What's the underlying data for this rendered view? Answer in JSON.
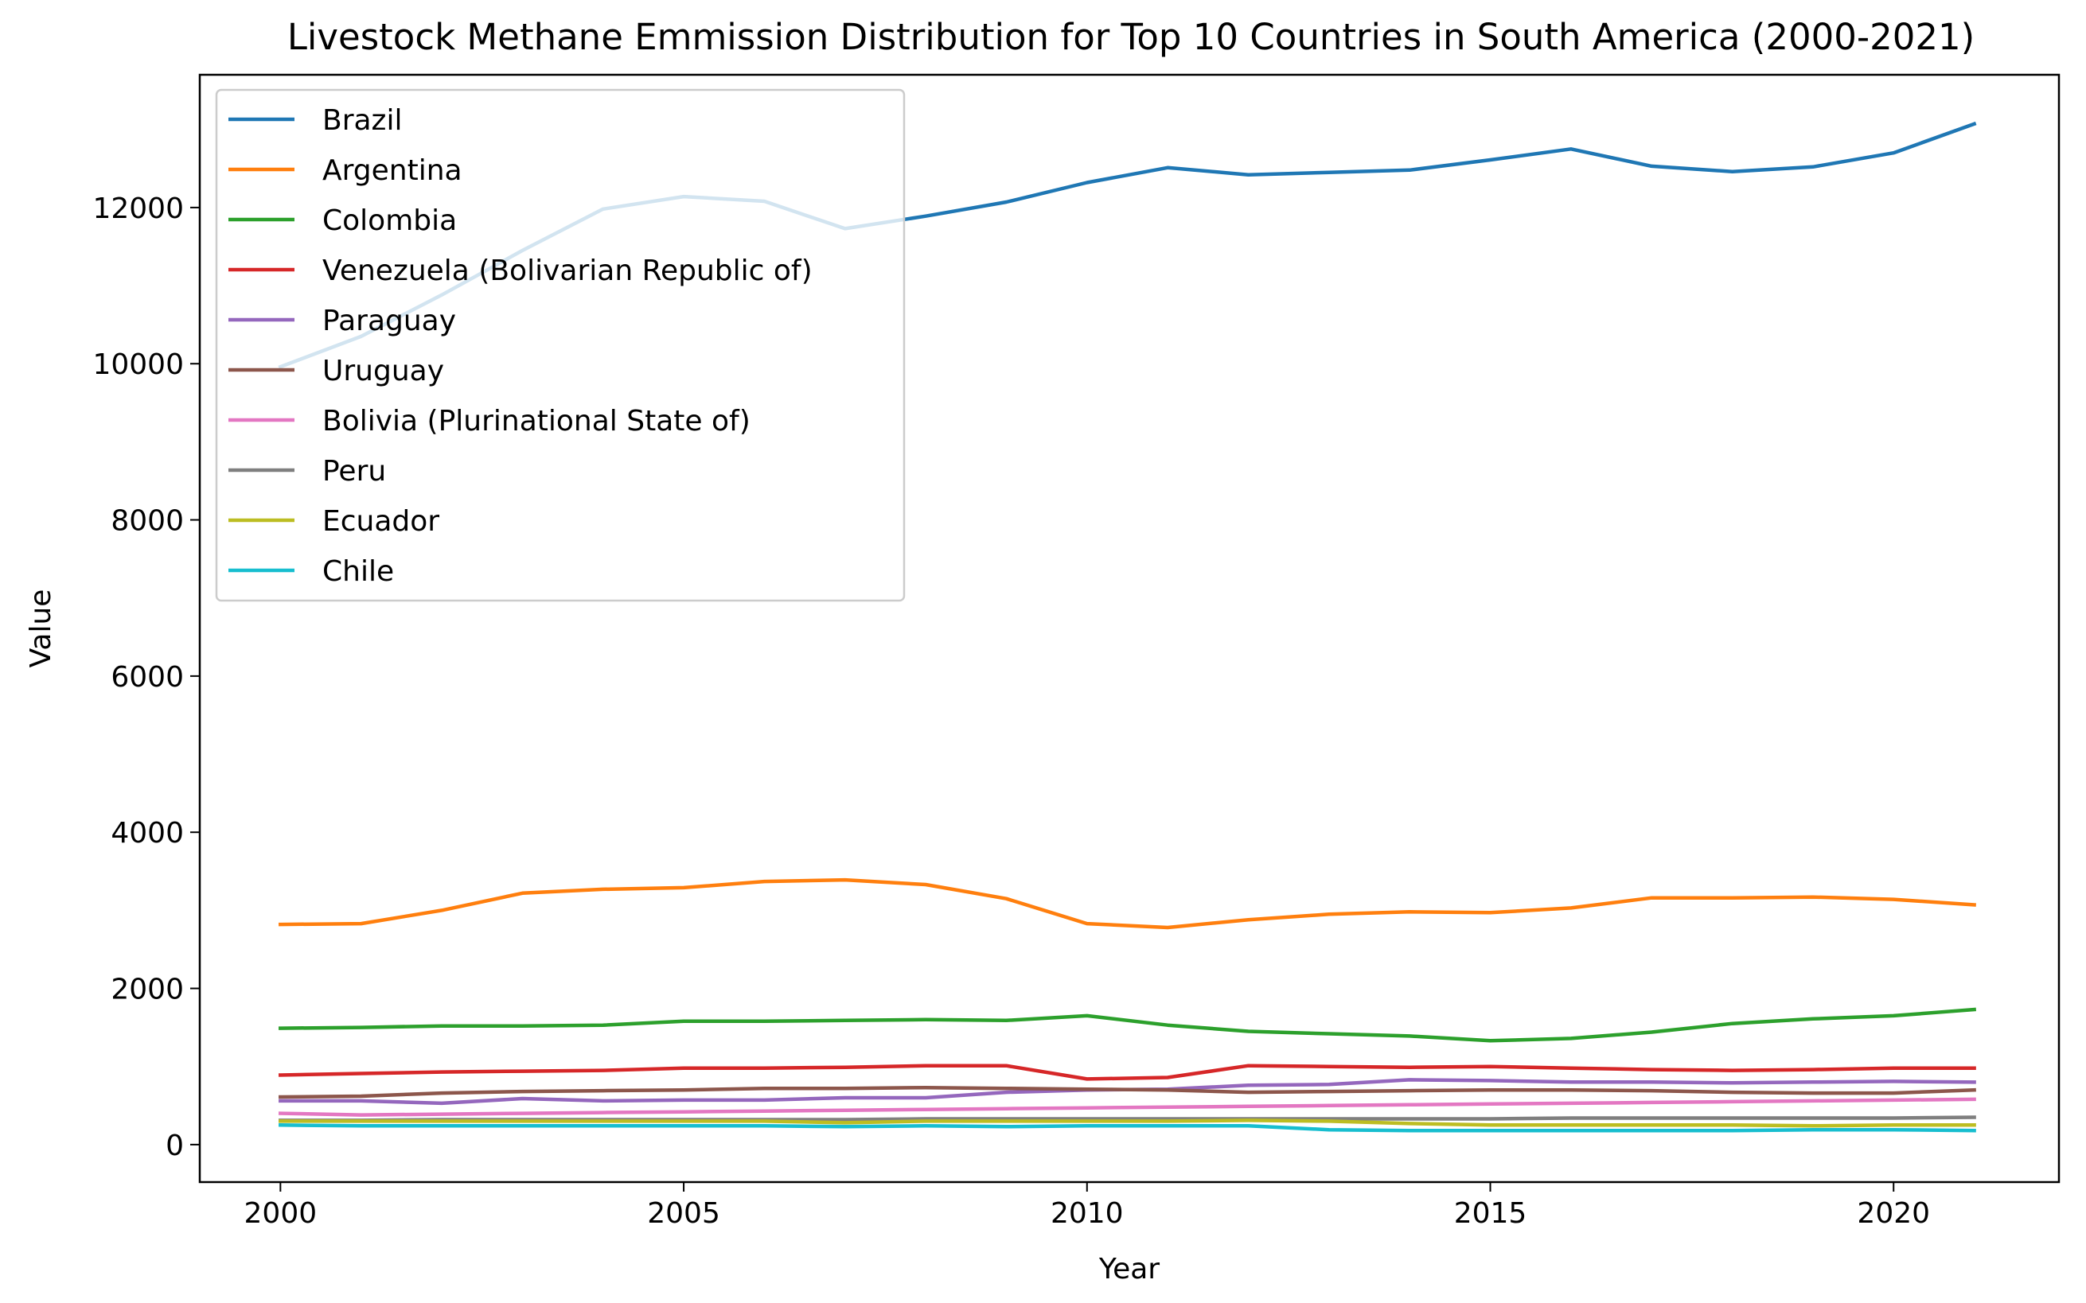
{
  "chart_data": {
    "type": "line",
    "title": "Livestock Methane Emmission Distribution for Top 10 Countries in South America (2000-2021)",
    "xlabel": "Year",
    "ylabel": "Value",
    "xlim": [
      1999,
      2022.05
    ],
    "ylim": [
      -480,
      13700
    ],
    "xticks": [
      2000,
      2005,
      2010,
      2015,
      2020
    ],
    "yticks": [
      0,
      2000,
      4000,
      6000,
      8000,
      10000,
      12000
    ],
    "grid": false,
    "legend_position": "upper left",
    "x": [
      2000,
      2001,
      2002,
      2003,
      2004,
      2005,
      2006,
      2007,
      2008,
      2009,
      2010,
      2011,
      2012,
      2013,
      2014,
      2015,
      2016,
      2017,
      2018,
      2019,
      2020,
      2021
    ],
    "series": [
      {
        "name": "Brazil",
        "color": "#1f77b4",
        "values": [
          9960,
          10350,
          10880,
          11450,
          11980,
          12140,
          12080,
          11730,
          11890,
          12070,
          12320,
          12510,
          12420,
          12450,
          12480,
          12610,
          12750,
          12530,
          12460,
          12520,
          12700,
          13070
        ]
      },
      {
        "name": "Argentina",
        "color": "#ff7f0e",
        "values": [
          2820,
          2830,
          3000,
          3220,
          3270,
          3290,
          3370,
          3390,
          3330,
          3150,
          2830,
          2780,
          2880,
          2950,
          2980,
          2970,
          3030,
          3160,
          3160,
          3170,
          3140,
          3070
        ]
      },
      {
        "name": "Colombia",
        "color": "#2ca02c",
        "values": [
          1490,
          1500,
          1520,
          1520,
          1530,
          1580,
          1580,
          1590,
          1600,
          1590,
          1650,
          1530,
          1450,
          1420,
          1390,
          1330,
          1360,
          1440,
          1550,
          1610,
          1650,
          1730
        ]
      },
      {
        "name": "Venezuela (Bolivarian Republic of)",
        "color": "#d62728",
        "values": [
          890,
          910,
          930,
          940,
          950,
          980,
          980,
          990,
          1010,
          1010,
          840,
          860,
          1010,
          1000,
          990,
          1000,
          980,
          960,
          950,
          960,
          980,
          980
        ]
      },
      {
        "name": "Paraguay",
        "color": "#9467bd",
        "values": [
          560,
          560,
          530,
          590,
          560,
          570,
          570,
          600,
          600,
          670,
          700,
          710,
          760,
          770,
          830,
          820,
          800,
          800,
          790,
          800,
          810,
          800
        ]
      },
      {
        "name": "Uruguay",
        "color": "#8c564b",
        "values": [
          610,
          620,
          660,
          680,
          690,
          700,
          720,
          720,
          730,
          720,
          710,
          700,
          670,
          680,
          690,
          700,
          700,
          690,
          670,
          660,
          660,
          700
        ]
      },
      {
        "name": "Bolivia (Plurinational State of)",
        "color": "#e377c2",
        "values": [
          400,
          380,
          390,
          400,
          410,
          420,
          430,
          440,
          450,
          460,
          470,
          480,
          490,
          500,
          510,
          520,
          530,
          540,
          550,
          560,
          570,
          580
        ]
      },
      {
        "name": "Peru",
        "color": "#7f7f7f",
        "values": [
          310,
          310,
          320,
          320,
          320,
          320,
          320,
          320,
          330,
          330,
          330,
          330,
          330,
          330,
          330,
          330,
          340,
          340,
          340,
          340,
          340,
          350
        ]
      },
      {
        "name": "Ecuador",
        "color": "#bcbd22",
        "values": [
          300,
          300,
          300,
          300,
          300,
          300,
          300,
          280,
          300,
          300,
          300,
          300,
          310,
          300,
          270,
          250,
          250,
          250,
          250,
          240,
          250,
          250
        ]
      },
      {
        "name": "Chile",
        "color": "#17becf",
        "values": [
          250,
          240,
          240,
          240,
          240,
          240,
          240,
          230,
          240,
          230,
          240,
          240,
          240,
          190,
          180,
          180,
          180,
          180,
          180,
          190,
          190,
          180
        ]
      }
    ]
  }
}
